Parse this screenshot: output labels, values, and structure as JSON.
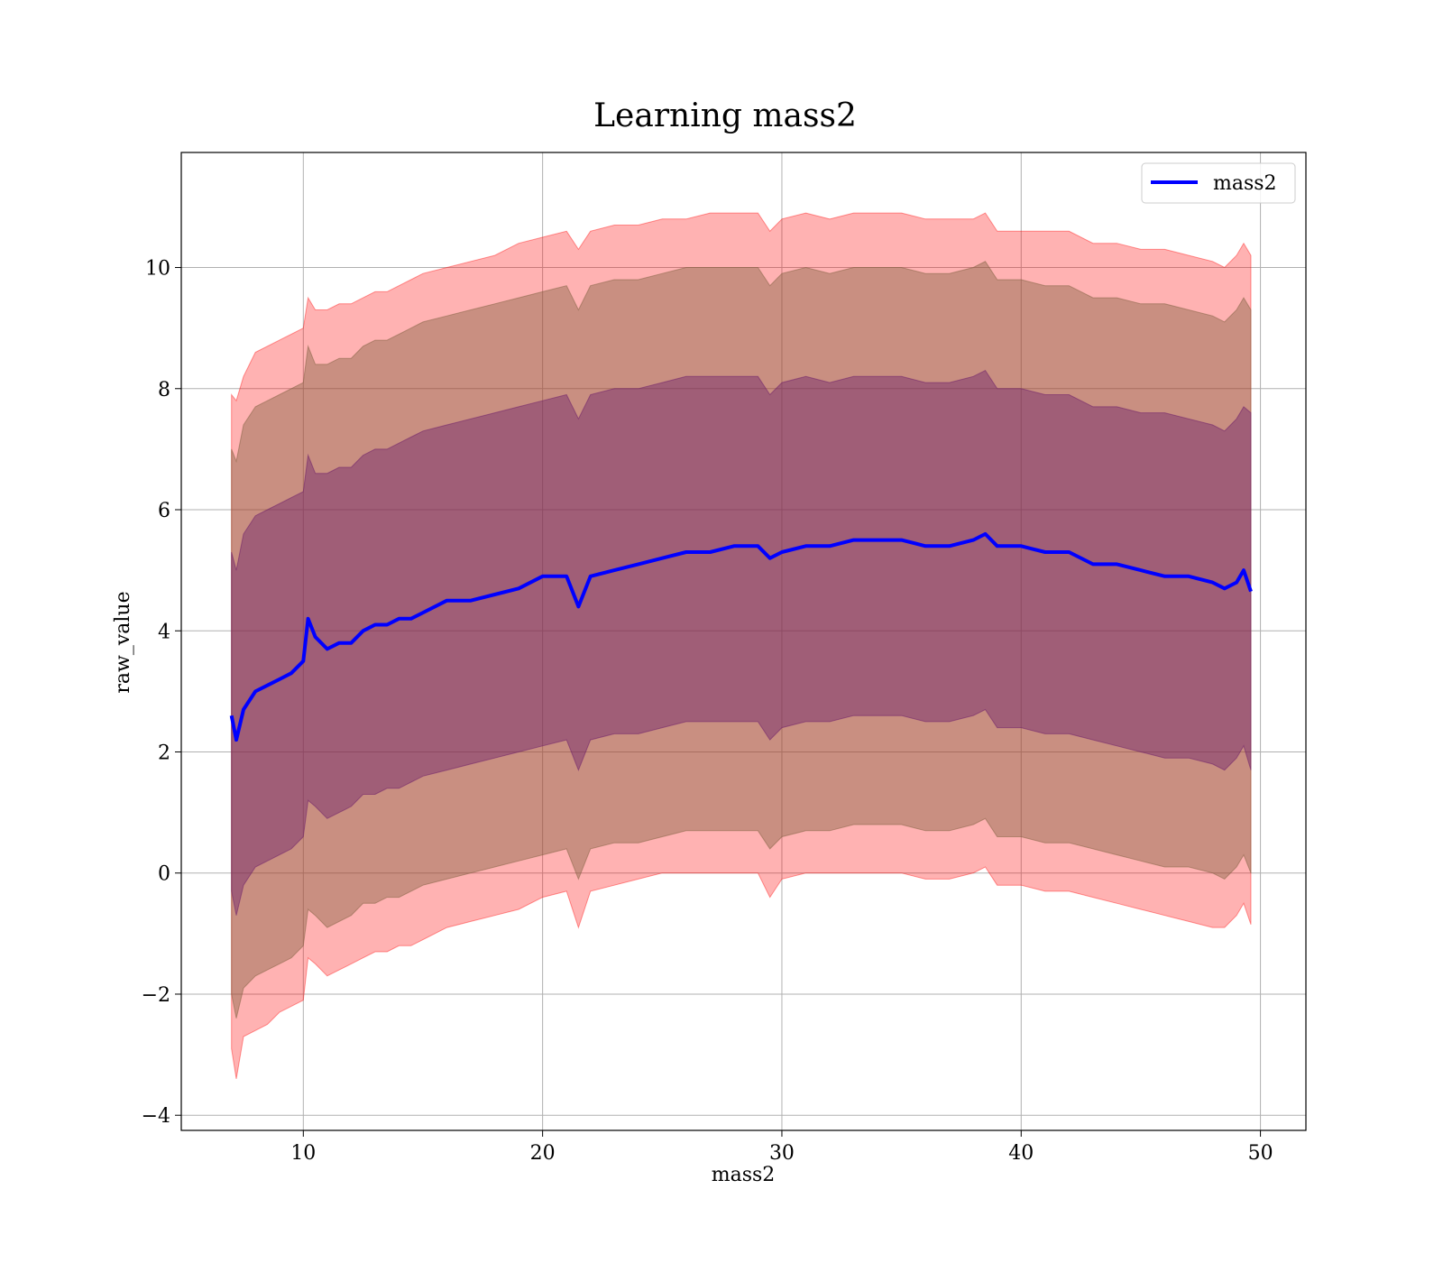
{
  "chart_data": {
    "type": "line",
    "title": "Learning mass2",
    "xlabel": "mass2",
    "ylabel": "raw_value",
    "xlim": [
      4.9,
      51.9
    ],
    "ylim": [
      -4.25,
      11.9
    ],
    "xticks": [
      10,
      20,
      30,
      40,
      50
    ],
    "yticks": [
      -4,
      -2,
      0,
      2,
      4,
      6,
      8,
      10
    ],
    "grid": true,
    "legend_position": "top-right",
    "colors": {
      "line": "#0000ff",
      "band": "#ff0000",
      "band_mid": "#7f5f3f",
      "band_inner": "#6a1a6a",
      "grid": "#b0b0b0"
    },
    "series": [
      {
        "name": "mass2",
        "x": [
          7.0,
          7.2,
          7.5,
          8.0,
          8.5,
          9.0,
          9.5,
          10.0,
          10.2,
          10.5,
          11.0,
          11.5,
          12.0,
          12.5,
          13.0,
          13.5,
          14.0,
          14.5,
          15.0,
          16.0,
          17.0,
          18.0,
          19.0,
          20.0,
          21.0,
          21.5,
          22.0,
          23.0,
          24.0,
          25.0,
          26.0,
          27.0,
          28.0,
          29.0,
          29.5,
          30.0,
          31.0,
          32.0,
          33.0,
          34.0,
          35.0,
          36.0,
          37.0,
          38.0,
          38.5,
          39.0,
          40.0,
          41.0,
          42.0,
          43.0,
          44.0,
          45.0,
          46.0,
          47.0,
          48.0,
          48.5,
          49.0,
          49.3,
          49.6
        ],
        "values": [
          2.6,
          2.2,
          2.7,
          3.0,
          3.1,
          3.2,
          3.3,
          3.5,
          4.2,
          3.9,
          3.7,
          3.8,
          3.8,
          4.0,
          4.1,
          4.1,
          4.2,
          4.2,
          4.3,
          4.5,
          4.5,
          4.6,
          4.7,
          4.9,
          4.9,
          4.4,
          4.9,
          5.0,
          5.1,
          5.2,
          5.3,
          5.3,
          5.4,
          5.4,
          5.2,
          5.3,
          5.4,
          5.4,
          5.5,
          5.5,
          5.5,
          5.4,
          5.4,
          5.5,
          5.6,
          5.4,
          5.4,
          5.3,
          5.3,
          5.1,
          5.1,
          5.0,
          4.9,
          4.9,
          4.8,
          4.7,
          4.8,
          5.0,
          4.65
        ],
        "band_outer_high": [
          7.9,
          7.8,
          8.2,
          8.6,
          8.7,
          8.8,
          8.9,
          9.0,
          9.5,
          9.3,
          9.3,
          9.4,
          9.4,
          9.5,
          9.6,
          9.6,
          9.7,
          9.8,
          9.9,
          10.0,
          10.1,
          10.2,
          10.4,
          10.5,
          10.6,
          10.3,
          10.6,
          10.7,
          10.7,
          10.8,
          10.8,
          10.9,
          10.9,
          10.9,
          10.6,
          10.8,
          10.9,
          10.8,
          10.9,
          10.9,
          10.9,
          10.8,
          10.8,
          10.8,
          10.9,
          10.6,
          10.6,
          10.6,
          10.6,
          10.4,
          10.4,
          10.3,
          10.3,
          10.2,
          10.1,
          10.0,
          10.2,
          10.4,
          10.2
        ],
        "band_outer_low": [
          -2.9,
          -3.4,
          -2.7,
          -2.6,
          -2.5,
          -2.3,
          -2.2,
          -2.1,
          -1.4,
          -1.5,
          -1.7,
          -1.6,
          -1.5,
          -1.4,
          -1.3,
          -1.3,
          -1.2,
          -1.2,
          -1.1,
          -0.9,
          -0.8,
          -0.7,
          -0.6,
          -0.4,
          -0.3,
          -0.9,
          -0.3,
          -0.2,
          -0.1,
          0.0,
          0.0,
          0.0,
          0.0,
          0.0,
          -0.4,
          -0.1,
          0.0,
          0.0,
          0.0,
          0.0,
          0.0,
          -0.1,
          -0.1,
          0.0,
          0.1,
          -0.2,
          -0.2,
          -0.3,
          -0.3,
          -0.4,
          -0.5,
          -0.6,
          -0.7,
          -0.8,
          -0.9,
          -0.9,
          -0.7,
          -0.5,
          -0.85
        ],
        "band_mid_high": [
          7.0,
          6.8,
          7.4,
          7.7,
          7.8,
          7.9,
          8.0,
          8.1,
          8.7,
          8.4,
          8.4,
          8.5,
          8.5,
          8.7,
          8.8,
          8.8,
          8.9,
          9.0,
          9.1,
          9.2,
          9.3,
          9.4,
          9.5,
          9.6,
          9.7,
          9.3,
          9.7,
          9.8,
          9.8,
          9.9,
          10.0,
          10.0,
          10.0,
          10.0,
          9.7,
          9.9,
          10.0,
          9.9,
          10.0,
          10.0,
          10.0,
          9.9,
          9.9,
          10.0,
          10.1,
          9.8,
          9.8,
          9.7,
          9.7,
          9.5,
          9.5,
          9.4,
          9.4,
          9.3,
          9.2,
          9.1,
          9.3,
          9.5,
          9.3
        ],
        "band_mid_low": [
          -2.0,
          -2.4,
          -1.9,
          -1.7,
          -1.6,
          -1.5,
          -1.4,
          -1.2,
          -0.6,
          -0.7,
          -0.9,
          -0.8,
          -0.7,
          -0.5,
          -0.5,
          -0.4,
          -0.4,
          -0.3,
          -0.2,
          -0.1,
          0.0,
          0.1,
          0.2,
          0.3,
          0.4,
          -0.1,
          0.4,
          0.5,
          0.5,
          0.6,
          0.7,
          0.7,
          0.7,
          0.7,
          0.4,
          0.6,
          0.7,
          0.7,
          0.8,
          0.8,
          0.8,
          0.7,
          0.7,
          0.8,
          0.9,
          0.6,
          0.6,
          0.5,
          0.5,
          0.4,
          0.3,
          0.2,
          0.1,
          0.1,
          0.0,
          -0.1,
          0.1,
          0.3,
          0.0
        ],
        "band_inner_high": [
          5.3,
          5.0,
          5.6,
          5.9,
          6.0,
          6.1,
          6.2,
          6.3,
          6.9,
          6.6,
          6.6,
          6.7,
          6.7,
          6.9,
          7.0,
          7.0,
          7.1,
          7.2,
          7.3,
          7.4,
          7.5,
          7.6,
          7.7,
          7.8,
          7.9,
          7.5,
          7.9,
          8.0,
          8.0,
          8.1,
          8.2,
          8.2,
          8.2,
          8.2,
          7.9,
          8.1,
          8.2,
          8.1,
          8.2,
          8.2,
          8.2,
          8.1,
          8.1,
          8.2,
          8.3,
          8.0,
          8.0,
          7.9,
          7.9,
          7.7,
          7.7,
          7.6,
          7.6,
          7.5,
          7.4,
          7.3,
          7.5,
          7.7,
          7.6
        ],
        "band_inner_low": [
          -0.3,
          -0.7,
          -0.2,
          0.1,
          0.2,
          0.3,
          0.4,
          0.6,
          1.2,
          1.1,
          0.9,
          1.0,
          1.1,
          1.3,
          1.3,
          1.4,
          1.4,
          1.5,
          1.6,
          1.7,
          1.8,
          1.9,
          2.0,
          2.1,
          2.2,
          1.7,
          2.2,
          2.3,
          2.3,
          2.4,
          2.5,
          2.5,
          2.5,
          2.5,
          2.2,
          2.4,
          2.5,
          2.5,
          2.6,
          2.6,
          2.6,
          2.5,
          2.5,
          2.6,
          2.7,
          2.4,
          2.4,
          2.3,
          2.3,
          2.2,
          2.1,
          2.0,
          1.9,
          1.9,
          1.8,
          1.7,
          1.9,
          2.1,
          1.7
        ]
      }
    ]
  }
}
